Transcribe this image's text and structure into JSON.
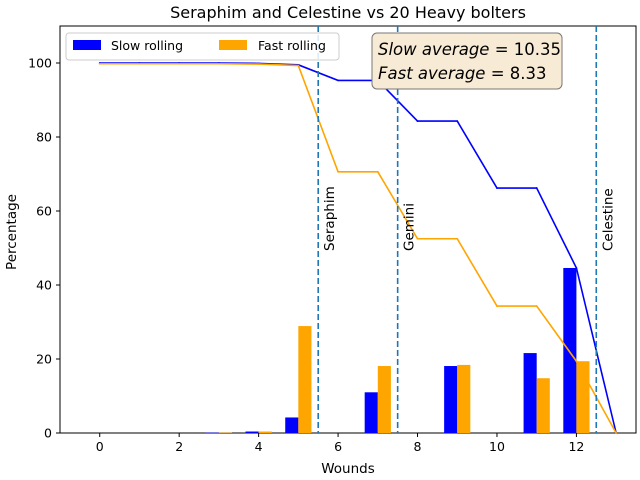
{
  "chart_data": {
    "type": "bar",
    "title": "Seraphim and Celestine vs 20 Heavy bolters",
    "xlabel": "Wounds",
    "ylabel": "Percentage",
    "xlim": [
      -1,
      13.5
    ],
    "ylim": [
      0,
      110
    ],
    "xticks": [
      0,
      2,
      4,
      6,
      8,
      10,
      12
    ],
    "yticks": [
      0,
      20,
      40,
      60,
      80,
      100
    ],
    "legend_position": "top-left",
    "grid": false,
    "series": [
      {
        "name": "Slow rolling",
        "color": "#0000ff",
        "bar_x": [
          3,
          4,
          5,
          7,
          9,
          11,
          12
        ],
        "bar_values": [
          0.1,
          0.4,
          4.2,
          11.0,
          18.1,
          21.6,
          44.6
        ],
        "line_x": [
          0,
          1,
          2,
          3,
          4,
          5,
          6,
          7,
          8,
          9,
          10,
          11,
          12,
          13
        ],
        "line_values": [
          100,
          100,
          100,
          100,
          99.9,
          99.5,
          95.3,
          95.3,
          84.3,
          84.3,
          66.2,
          66.2,
          44.6,
          0
        ]
      },
      {
        "name": "Fast rolling",
        "color": "#ffa500",
        "bar_x": [
          3,
          4,
          5,
          7,
          9,
          11,
          12
        ],
        "bar_values": [
          0.1,
          0.4,
          28.9,
          18.1,
          18.4,
          14.8,
          19.4
        ],
        "line_x": [
          0,
          1,
          2,
          3,
          4,
          5,
          6,
          7,
          8,
          9,
          10,
          11,
          12,
          13
        ],
        "line_values": [
          99.8,
          99.8,
          99.8,
          99.8,
          99.7,
          99.3,
          70.6,
          70.6,
          52.5,
          52.5,
          34.3,
          34.3,
          19.4,
          0
        ]
      }
    ],
    "vertical_lines": [
      {
        "x": 5.5,
        "label": "Seraphim"
      },
      {
        "x": 7.5,
        "label": "Gemini"
      },
      {
        "x": 12.5,
        "label": "Celestine"
      }
    ],
    "annotation": {
      "slow_label": "Slow average",
      "slow_value": "10.35",
      "fast_label": "Fast average",
      "fast_value": "8.33",
      "box_color": "#f8ebd5"
    },
    "vline_color": "#1f77b4"
  }
}
